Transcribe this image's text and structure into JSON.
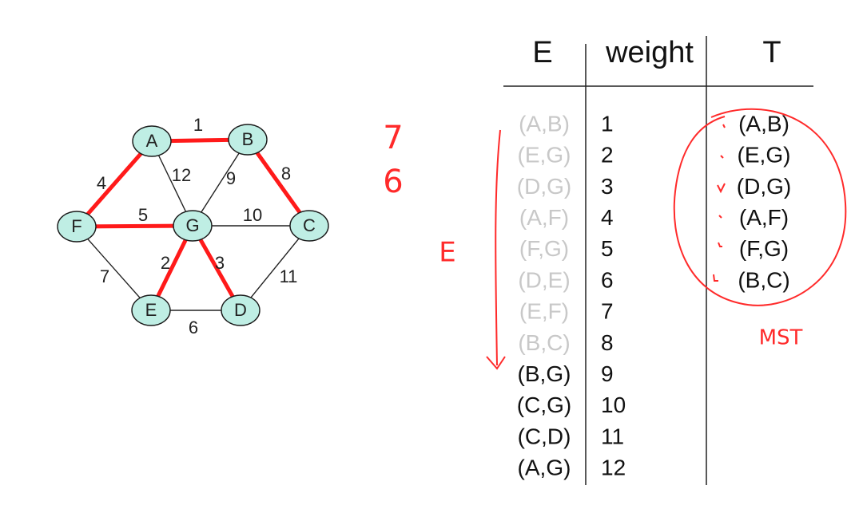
{
  "graph": {
    "nodes": [
      {
        "id": "A",
        "label": "A"
      },
      {
        "id": "B",
        "label": "B"
      },
      {
        "id": "C",
        "label": "C"
      },
      {
        "id": "D",
        "label": "D"
      },
      {
        "id": "E",
        "label": "E"
      },
      {
        "id": "F",
        "label": "F"
      },
      {
        "id": "G",
        "label": "G"
      }
    ],
    "edges": [
      {
        "from": "A",
        "to": "B",
        "weight": "1",
        "in_mst": true
      },
      {
        "from": "E",
        "to": "G",
        "weight": "2",
        "in_mst": true
      },
      {
        "from": "D",
        "to": "G",
        "weight": "3",
        "in_mst": true
      },
      {
        "from": "A",
        "to": "F",
        "weight": "4",
        "in_mst": true
      },
      {
        "from": "F",
        "to": "G",
        "weight": "5",
        "in_mst": true
      },
      {
        "from": "D",
        "to": "E",
        "weight": "6",
        "in_mst": false
      },
      {
        "from": "E",
        "to": "F",
        "weight": "7",
        "in_mst": false
      },
      {
        "from": "B",
        "to": "C",
        "weight": "8",
        "in_mst": true
      },
      {
        "from": "B",
        "to": "G",
        "weight": "9",
        "in_mst": false
      },
      {
        "from": "C",
        "to": "G",
        "weight": "10",
        "in_mst": false
      },
      {
        "from": "C",
        "to": "D",
        "weight": "11",
        "in_mst": false
      },
      {
        "from": "A",
        "to": "G",
        "weight": "12",
        "in_mst": false
      }
    ],
    "colors": {
      "node_fill": "#bfeee4",
      "mst_edge": "#ff1a1a",
      "edge": "#222222"
    }
  },
  "table": {
    "headers": {
      "edges": "E",
      "weight": "weight",
      "tree": "T"
    },
    "rows": [
      {
        "edge": "(A,B)",
        "weight": "1",
        "processed": true
      },
      {
        "edge": "(E,G)",
        "weight": "2",
        "processed": true
      },
      {
        "edge": "(D,G)",
        "weight": "3",
        "processed": true
      },
      {
        "edge": "(A,F)",
        "weight": "4",
        "processed": true
      },
      {
        "edge": "(F,G)",
        "weight": "5",
        "processed": true
      },
      {
        "edge": "(D,E)",
        "weight": "6",
        "processed": true
      },
      {
        "edge": "(E,F)",
        "weight": "7",
        "processed": true
      },
      {
        "edge": "(B,C)",
        "weight": "8",
        "processed": true
      },
      {
        "edge": "(B,G)",
        "weight": "9",
        "processed": false
      },
      {
        "edge": "(C,G)",
        "weight": "10",
        "processed": false
      },
      {
        "edge": "(C,D)",
        "weight": "11",
        "processed": false
      },
      {
        "edge": "(A,G)",
        "weight": "12",
        "processed": false
      }
    ],
    "tree": [
      "(A,B)",
      "(E,G)",
      "(D,G)",
      "(A,F)",
      "(F,G)",
      "(B,C)"
    ],
    "colors": {
      "processed": "#c8c8c8",
      "pending": "#111111"
    }
  },
  "annotations": {
    "counter_top": "7",
    "counter_bottom": "6",
    "edge_set_label": "E",
    "mst_label": "MST",
    "color": "#ff2a2a"
  }
}
